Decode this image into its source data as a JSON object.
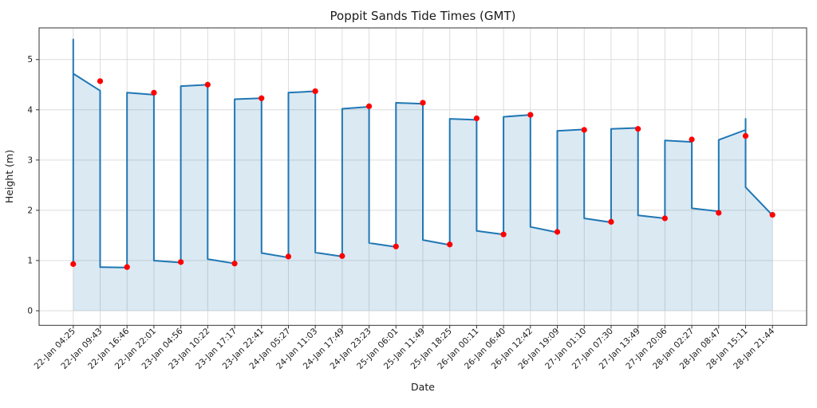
{
  "chart_data": {
    "type": "line",
    "title": "Poppit Sands Tide Times (GMT)",
    "xlabel": "Date",
    "ylabel": "Height (m)",
    "legend": "none",
    "grid": true,
    "categories": [
      "22-Jan 04:25",
      "22-Jan 09:43",
      "22-Jan 16:46",
      "22-Jan 22:01",
      "23-Jan 04:56",
      "23-Jan 10:22",
      "23-Jan 17:17",
      "23-Jan 22:41",
      "24-Jan 05:27",
      "24-Jan 11:03",
      "24-Jan 17:49",
      "24-Jan 23:23",
      "25-Jan 06:01",
      "25-Jan 11:49",
      "25-Jan 18:25",
      "26-Jan 00:11",
      "26-Jan 06:40",
      "26-Jan 12:42",
      "26-Jan 19:09",
      "27-Jan 01:10",
      "27-Jan 07:30",
      "27-Jan 13:49",
      "27-Jan 20:06",
      "28-Jan 02:27",
      "28-Jan 08:47",
      "28-Jan 15:11",
      "28-Jan 21:44"
    ],
    "y_ticks": [
      0,
      1,
      2,
      3,
      4,
      5
    ],
    "ylim": [
      -0.29,
      5.63
    ],
    "xlim_index": [
      -1.27,
      27.27
    ],
    "series": [
      {
        "name": "tide-height-curve",
        "type": "line-with-fill",
        "color": "#1f77b4",
        "fill_color": "rgba(31,119,180,0.16)",
        "line_width": 2,
        "points": [
          [
            0,
            0.93
          ],
          [
            0,
            5.4
          ],
          [
            0,
            4.72
          ],
          [
            1,
            4.38
          ],
          [
            1,
            0.87
          ],
          [
            2,
            0.86
          ],
          [
            2,
            4.34
          ],
          [
            3,
            4.3
          ],
          [
            3,
            1.0
          ],
          [
            4,
            0.96
          ],
          [
            4,
            4.47
          ],
          [
            5,
            4.5
          ],
          [
            5,
            1.03
          ],
          [
            6,
            0.94
          ],
          [
            6,
            4.21
          ],
          [
            7,
            4.23
          ],
          [
            7,
            1.15
          ],
          [
            8,
            1.06
          ],
          [
            8,
            4.34
          ],
          [
            9,
            4.37
          ],
          [
            9,
            1.16
          ],
          [
            10,
            1.08
          ],
          [
            10,
            4.02
          ],
          [
            11,
            4.06
          ],
          [
            11,
            1.35
          ],
          [
            12,
            1.27
          ],
          [
            12,
            4.14
          ],
          [
            13,
            4.12
          ],
          [
            13,
            1.41
          ],
          [
            14,
            1.31
          ],
          [
            14,
            3.82
          ],
          [
            15,
            3.8
          ],
          [
            15,
            1.59
          ],
          [
            16,
            1.52
          ],
          [
            16,
            3.86
          ],
          [
            17,
            3.9
          ],
          [
            17,
            1.67
          ],
          [
            18,
            1.56
          ],
          [
            18,
            3.58
          ],
          [
            19,
            3.61
          ],
          [
            19,
            1.84
          ],
          [
            20,
            1.76
          ],
          [
            20,
            3.62
          ],
          [
            21,
            3.64
          ],
          [
            21,
            1.9
          ],
          [
            22,
            1.84
          ],
          [
            22,
            3.39
          ],
          [
            23,
            3.36
          ],
          [
            23,
            2.04
          ],
          [
            24,
            1.98
          ],
          [
            24,
            3.4
          ],
          [
            25,
            3.6
          ],
          [
            25,
            3.82
          ],
          [
            25,
            2.46
          ],
          [
            26,
            1.9
          ]
        ]
      },
      {
        "name": "tide-extreme-markers",
        "type": "scatter",
        "marker": "circle",
        "color": "#ff0000",
        "marker_radius": 3.6,
        "values": [
          0.93,
          4.57,
          0.87,
          4.34,
          0.97,
          4.5,
          0.94,
          4.23,
          1.08,
          4.37,
          1.09,
          4.07,
          1.28,
          4.14,
          1.32,
          3.83,
          1.52,
          3.9,
          1.57,
          3.6,
          1.77,
          3.62,
          1.84,
          3.41,
          1.95,
          3.48,
          1.91
        ]
      }
    ],
    "colors": {
      "grid": "#dcdcdc",
      "spine": "#333333",
      "text": "#1a1a1a",
      "background": "#ffffff"
    }
  }
}
